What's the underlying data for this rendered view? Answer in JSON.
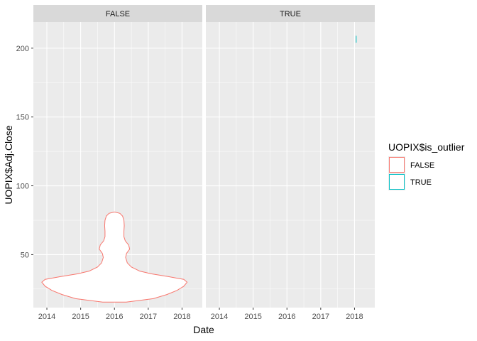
{
  "chart_data": {
    "type": "violin",
    "xlabel": "Date",
    "ylabel": "UOPIX$Adj.Close",
    "facets": [
      "FALSE",
      "TRUE"
    ],
    "x_ticks": [
      "2014",
      "2015",
      "2016",
      "2017",
      "2018"
    ],
    "x_tick_values": [
      2014,
      2015,
      2016,
      2017,
      2018
    ],
    "xlim": [
      2013.6,
      2018.6
    ],
    "y_ticks": [
      "50",
      "100",
      "150",
      "200"
    ],
    "y_tick_values": [
      50,
      100,
      150,
      200
    ],
    "ylim": [
      11.5,
      219
    ],
    "grid": true,
    "legend": {
      "title": "UOPIX$is_outlier",
      "position": "right",
      "items": [
        {
          "label": "FALSE",
          "color": "#F8766D"
        },
        {
          "label": "TRUE",
          "color": "#00BFC4"
        }
      ]
    },
    "series": [
      {
        "name": "FALSE",
        "facet": "FALSE",
        "color": "#F8766D",
        "center_x": 2016.0,
        "violin_profile": [
          {
            "y": 15.5,
            "half_width": 0.35
          },
          {
            "y": 18,
            "half_width": 1.15
          },
          {
            "y": 21,
            "half_width": 1.55
          },
          {
            "y": 24,
            "half_width": 1.85
          },
          {
            "y": 27,
            "half_width": 2.05
          },
          {
            "y": 30,
            "half_width": 2.15
          },
          {
            "y": 32,
            "half_width": 2.05
          },
          {
            "y": 34,
            "half_width": 1.6
          },
          {
            "y": 36,
            "half_width": 1.1
          },
          {
            "y": 38,
            "half_width": 0.75
          },
          {
            "y": 41,
            "half_width": 0.5
          },
          {
            "y": 44,
            "half_width": 0.38
          },
          {
            "y": 48,
            "half_width": 0.33
          },
          {
            "y": 51,
            "half_width": 0.36
          },
          {
            "y": 54,
            "half_width": 0.45
          },
          {
            "y": 57,
            "half_width": 0.42
          },
          {
            "y": 60,
            "half_width": 0.32
          },
          {
            "y": 63,
            "half_width": 0.28
          },
          {
            "y": 67,
            "half_width": 0.28
          },
          {
            "y": 71,
            "half_width": 0.29
          },
          {
            "y": 75,
            "half_width": 0.28
          },
          {
            "y": 78,
            "half_width": 0.24
          },
          {
            "y": 80,
            "half_width": 0.16
          },
          {
            "y": 81,
            "half_width": 0.0
          }
        ]
      },
      {
        "name": "TRUE",
        "facet": "TRUE",
        "color": "#00BFC4",
        "type": "segment",
        "x": 2018.05,
        "y_range": [
          204,
          209
        ]
      }
    ]
  }
}
